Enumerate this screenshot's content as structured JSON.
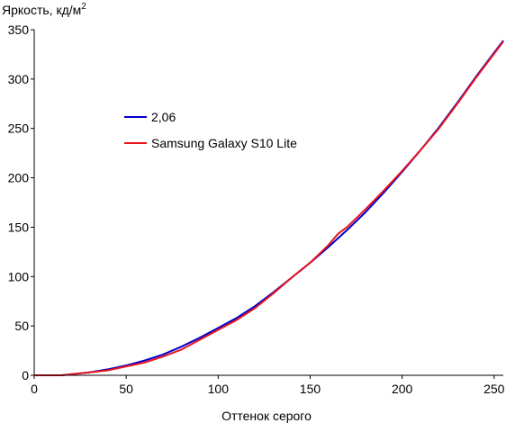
{
  "chart_data": {
    "type": "line",
    "title": "",
    "ylabel": "Яркость, кд/м",
    "ylabel_sup": "2",
    "xlabel": "Оттенок серого",
    "xlim": [
      0,
      255
    ],
    "ylim": [
      0,
      350
    ],
    "xticks": [
      0,
      50,
      100,
      150,
      200,
      250
    ],
    "yticks": [
      0,
      50,
      100,
      150,
      200,
      250,
      300,
      350
    ],
    "xtick_labels": [
      "0",
      "50",
      "100",
      "150",
      "200",
      "250"
    ],
    "ytick_labels": [
      "0",
      "50",
      "100",
      "150",
      "200",
      "250",
      "300",
      "350"
    ],
    "grid": false,
    "legend_position": "upper-left",
    "series": [
      {
        "name": "2,06",
        "color": "#0000cc",
        "x": [
          0,
          15,
          20,
          30,
          40,
          50,
          60,
          70,
          80,
          90,
          100,
          110,
          120,
          130,
          140,
          150,
          160,
          170,
          180,
          190,
          200,
          210,
          220,
          230,
          240,
          255
        ],
        "y": [
          0,
          0,
          1,
          3,
          6,
          10,
          15,
          21,
          29,
          38,
          48,
          58,
          70,
          84,
          99,
          114,
          130,
          147,
          165,
          185,
          206,
          228,
          251,
          276,
          302,
          339
        ]
      },
      {
        "name": "Samsung Galaxy S10 Lite",
        "color": "#e8141e",
        "x": [
          0,
          15,
          20,
          30,
          40,
          50,
          60,
          70,
          80,
          90,
          100,
          110,
          120,
          130,
          140,
          150,
          160,
          165,
          170,
          180,
          190,
          200,
          210,
          220,
          230,
          240,
          255
        ],
        "y": [
          0,
          0,
          1,
          3,
          5,
          9,
          13,
          19,
          26,
          36,
          46,
          56,
          68,
          83,
          99,
          114,
          132,
          143,
          150,
          168,
          187,
          207,
          228,
          250,
          275,
          301,
          338
        ]
      }
    ]
  }
}
